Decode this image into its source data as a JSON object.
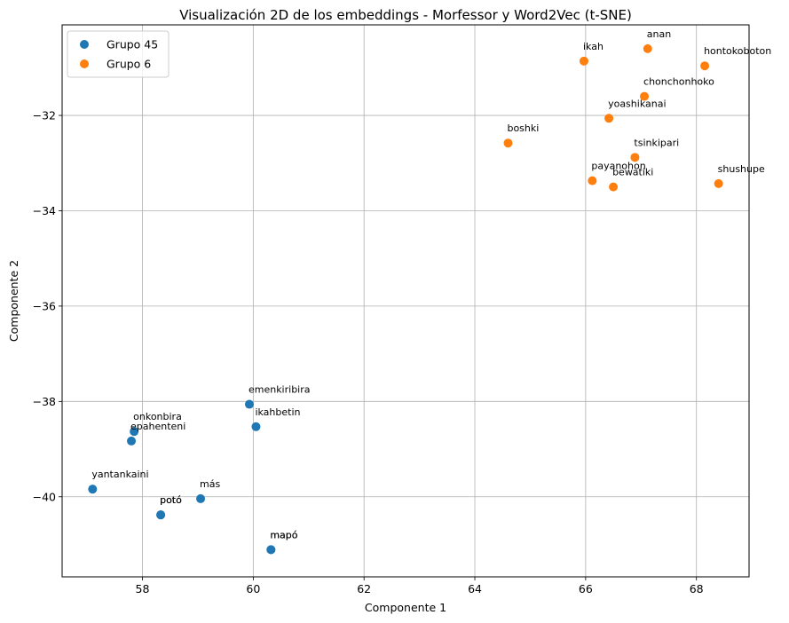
{
  "chart_data": {
    "type": "scatter",
    "title": "Visualización 2D de los embeddings - Morfessor y Word2Vec (t-SNE)",
    "xlabel": "Componente 1",
    "ylabel": "Componente 2",
    "xlim": [
      56.55,
      68.95
    ],
    "ylim": [
      -41.68,
      -30.1
    ],
    "xticks": [
      58,
      60,
      62,
      64,
      66,
      68
    ],
    "yticks": [
      -40,
      -38,
      -36,
      -34,
      -32
    ],
    "xtick_labels": [
      "58",
      "60",
      "62",
      "64",
      "66",
      "68"
    ],
    "ytick_labels": [
      "−40",
      "−38",
      "−36",
      "−34",
      "−32"
    ],
    "grid": true,
    "legend_position": "top-left",
    "series": [
      {
        "name": "Grupo 45",
        "color": "#1f77b4",
        "points": [
          {
            "label": "emenkiribira",
            "x": 59.93,
            "y": -38.06
          },
          {
            "label": "ikahbetin",
            "x": 60.05,
            "y": -38.53
          },
          {
            "label": "onkonbira",
            "x": 57.85,
            "y": -38.63
          },
          {
            "label": "epahenteni",
            "x": 57.8,
            "y": -38.83
          },
          {
            "label": "yantankaini",
            "x": 57.1,
            "y": -39.84
          },
          {
            "label": "más",
            "x": 59.05,
            "y": -40.04
          },
          {
            "label": "potó",
            "x": 58.33,
            "y": -40.38
          },
          {
            "label": "potó",
            "x": 58.33,
            "y": -40.38
          },
          {
            "label": "mapó",
            "x": 60.32,
            "y": -41.11
          },
          {
            "label": "mapó",
            "x": 60.32,
            "y": -41.11
          }
        ]
      },
      {
        "name": "Grupo 6",
        "color": "#ff7f0e",
        "points": [
          {
            "label": "anan",
            "x": 67.12,
            "y": -30.6
          },
          {
            "label": "ikah",
            "x": 65.97,
            "y": -30.86
          },
          {
            "label": "hontokoboton",
            "x": 68.15,
            "y": -30.96
          },
          {
            "label": "chonchonhoko",
            "x": 67.06,
            "y": -31.6
          },
          {
            "label": "yoashikanai",
            "x": 66.42,
            "y": -32.06
          },
          {
            "label": "boshki",
            "x": 64.6,
            "y": -32.58
          },
          {
            "label": "tsinkipari",
            "x": 66.89,
            "y": -32.88
          },
          {
            "label": "payanohon",
            "x": 66.12,
            "y": -33.37
          },
          {
            "label": "bewatiki",
            "x": 66.5,
            "y": -33.5
          },
          {
            "label": "shushupe",
            "x": 68.4,
            "y": -33.43
          }
        ]
      }
    ]
  }
}
